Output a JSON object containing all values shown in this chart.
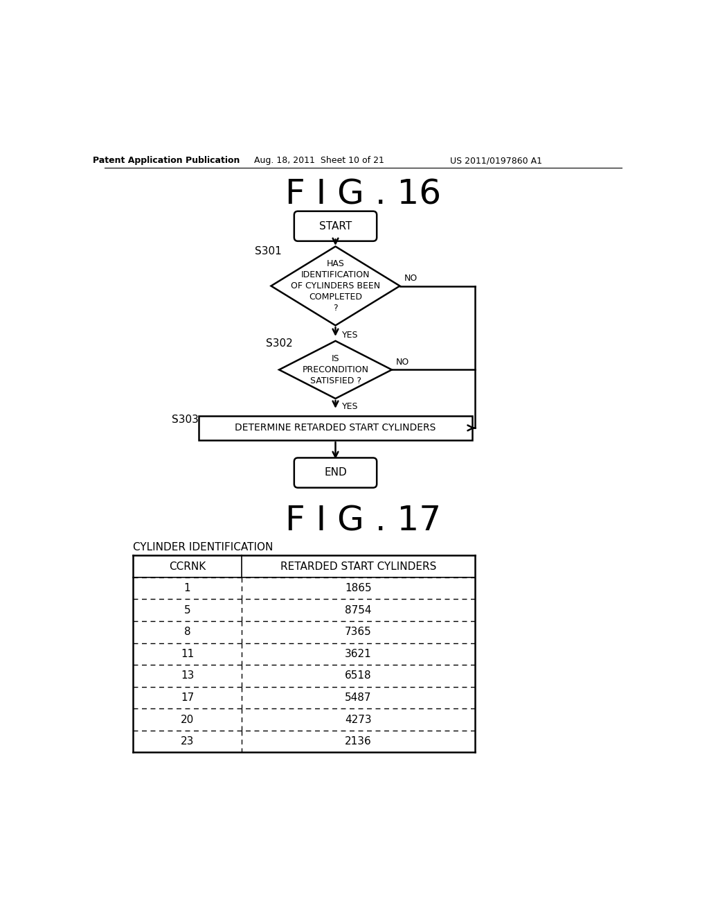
{
  "background_color": "#ffffff",
  "header_left": "Patent Application Publication",
  "header_mid": "Aug. 18, 2011  Sheet 10 of 21",
  "header_right": "US 2011/0197860 A1",
  "fig16_title": "F I G . 16",
  "fig17_title": "F I G . 17",
  "table_label": "CYLINDER IDENTIFICATION",
  "col1_header": "CCRNK",
  "col2_header": "RETARDED START CYLINDERS",
  "table_data": [
    [
      "1",
      "1865"
    ],
    [
      "5",
      "8754"
    ],
    [
      "8",
      "7365"
    ],
    [
      "11",
      "3621"
    ],
    [
      "13",
      "6518"
    ],
    [
      "17",
      "5487"
    ],
    [
      "20",
      "4273"
    ],
    [
      "23",
      "2136"
    ]
  ],
  "flowchart": {
    "start_text": "START",
    "end_text": "END",
    "diamond1_text": "HAS\nIDENTIFICATION\nOF CYLINDERS BEEN\nCOMPLETED\n?",
    "diamond1_label": "S301",
    "diamond1_yes": "YES",
    "diamond1_no": "NO",
    "diamond2_text": "IS\nPRECONDITION\nSATISFIED ?",
    "diamond2_label": "S302",
    "diamond2_yes": "YES",
    "diamond2_no": "NO",
    "rect_text": "DETERMINE RETARDED START CYLINDERS",
    "rect_label": "S303"
  },
  "line_color": "#000000",
  "text_color": "#000000"
}
